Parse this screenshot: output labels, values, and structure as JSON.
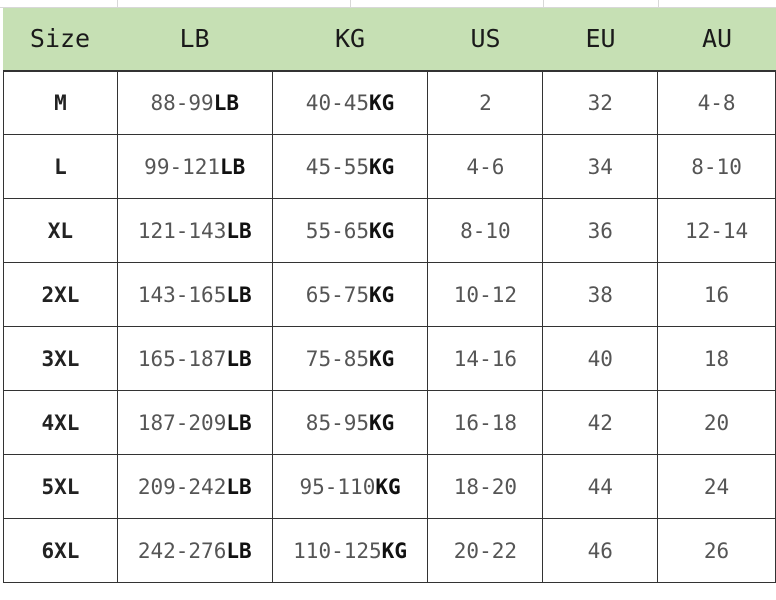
{
  "header_color": "#c6e0b4",
  "columns": [
    "Size",
    "LB",
    "KG",
    "US",
    "EU",
    "AU"
  ],
  "rows": [
    {
      "size": "M",
      "lb": "88-99",
      "lb_unit": "LB",
      "kg": "40-45",
      "kg_unit": "KG",
      "us": "2",
      "eu": "32",
      "au": "4-8"
    },
    {
      "size": "L",
      "lb": "99-121",
      "lb_unit": "LB",
      "kg": "45-55",
      "kg_unit": "KG",
      "us": "4-6",
      "eu": "34",
      "au": "8-10"
    },
    {
      "size": "XL",
      "lb": "121-143",
      "lb_unit": "LB",
      "kg": "55-65",
      "kg_unit": "KG",
      "us": "8-10",
      "eu": "36",
      "au": "12-14"
    },
    {
      "size": "2XL",
      "lb": "143-165",
      "lb_unit": "LB",
      "kg": "65-75",
      "kg_unit": "KG",
      "us": "10-12",
      "eu": "38",
      "au": "16"
    },
    {
      "size": "3XL",
      "lb": "165-187",
      "lb_unit": "LB",
      "kg": "75-85",
      "kg_unit": "KG",
      "us": "14-16",
      "eu": "40",
      "au": "18"
    },
    {
      "size": "4XL",
      "lb": "187-209",
      "lb_unit": "LB",
      "kg": "85-95",
      "kg_unit": "KG",
      "us": "16-18",
      "eu": "42",
      "au": "20"
    },
    {
      "size": "5XL",
      "lb": "209-242",
      "lb_unit": "LB",
      "kg": "95-110",
      "kg_unit": "KG",
      "us": "18-20",
      "eu": "44",
      "au": "24"
    },
    {
      "size": "6XL",
      "lb": "242-276",
      "lb_unit": "LB",
      "kg": "110-125",
      "kg_unit": "KG",
      "us": "20-22",
      "eu": "46",
      "au": "26"
    }
  ]
}
